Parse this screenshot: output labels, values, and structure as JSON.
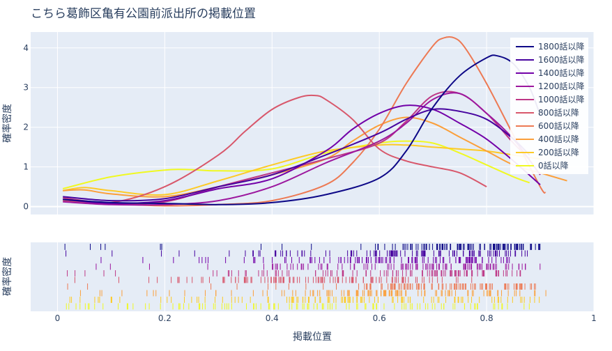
{
  "chart_data": {
    "type": "line",
    "title": "こちら葛飾区亀有公園前派出所の掲載位置",
    "xlabel": "掲載位置",
    "ylabel": "確率密度",
    "rug_ylabel": "確率密度",
    "xlim": [
      -0.05,
      1.0
    ],
    "ylim": [
      -0.2,
      4.4
    ],
    "x_ticks": [
      "0",
      "0.2",
      "0.4",
      "0.6",
      "0.8",
      "1"
    ],
    "x_tick_values": [
      0,
      0.2,
      0.4,
      0.6,
      0.8,
      1.0
    ],
    "y_ticks": [
      "0",
      "1",
      "2",
      "3",
      "4"
    ],
    "y_tick_values": [
      0,
      1,
      2,
      3,
      4
    ],
    "legend_position": "top-right",
    "grid": true,
    "series": [
      {
        "name": "1800話以降",
        "color": "#0d0887",
        "x": [
          0.01,
          0.1,
          0.2,
          0.3,
          0.4,
          0.5,
          0.6,
          0.65,
          0.7,
          0.75,
          0.8,
          0.82,
          0.85,
          0.88,
          0.9
        ],
        "y": [
          0.18,
          0.1,
          0.08,
          0.05,
          0.1,
          0.3,
          0.72,
          1.4,
          2.5,
          3.3,
          3.75,
          3.8,
          3.6,
          3.0,
          2.3
        ]
      },
      {
        "name": "1600話以降",
        "color": "#46039f",
        "x": [
          0.01,
          0.1,
          0.2,
          0.3,
          0.4,
          0.5,
          0.6,
          0.65,
          0.7,
          0.75,
          0.8,
          0.85,
          0.88
        ],
        "y": [
          0.25,
          0.15,
          0.2,
          0.5,
          0.8,
          1.3,
          1.85,
          2.2,
          2.45,
          2.4,
          2.2,
          1.7,
          1.3
        ]
      },
      {
        "name": "1400話以降",
        "color": "#7201a8",
        "x": [
          0.01,
          0.1,
          0.2,
          0.3,
          0.4,
          0.5,
          0.55,
          0.6,
          0.65,
          0.7,
          0.75,
          0.8,
          0.85,
          0.9
        ],
        "y": [
          0.18,
          0.08,
          0.15,
          0.45,
          0.7,
          1.4,
          1.95,
          2.35,
          2.55,
          2.45,
          2.1,
          1.7,
          1.15,
          0.55
        ]
      },
      {
        "name": "1200話以降",
        "color": "#9c179e",
        "x": [
          0.01,
          0.1,
          0.2,
          0.3,
          0.4,
          0.5,
          0.6,
          0.65,
          0.7,
          0.75,
          0.8,
          0.85,
          0.9
        ],
        "y": [
          0.12,
          0.05,
          0.05,
          0.15,
          0.5,
          1.1,
          1.65,
          2.1,
          2.7,
          2.85,
          2.35,
          1.7,
          0.8
        ]
      },
      {
        "name": "1000話以降",
        "color": "#bd3786",
        "x": [
          0.01,
          0.1,
          0.2,
          0.3,
          0.4,
          0.5,
          0.6,
          0.65,
          0.7,
          0.75,
          0.8,
          0.85,
          0.88
        ],
        "y": [
          0.22,
          0.08,
          0.12,
          0.5,
          0.85,
          1.2,
          1.6,
          2.15,
          2.8,
          2.85,
          2.35,
          1.6,
          1.2
        ]
      },
      {
        "name": "800話以降",
        "color": "#d8576b",
        "x": [
          0.01,
          0.1,
          0.2,
          0.3,
          0.35,
          0.4,
          0.45,
          0.48,
          0.5,
          0.55,
          0.6,
          0.65,
          0.7,
          0.75,
          0.8
        ],
        "y": [
          0.15,
          0.1,
          0.5,
          1.3,
          1.9,
          2.45,
          2.75,
          2.8,
          2.7,
          2.2,
          1.45,
          1.15,
          1.0,
          0.85,
          0.5
        ]
      },
      {
        "name": "600話以降",
        "color": "#ed7953",
        "x": [
          0.01,
          0.1,
          0.2,
          0.3,
          0.4,
          0.5,
          0.55,
          0.6,
          0.65,
          0.7,
          0.72,
          0.74,
          0.76,
          0.8,
          0.85,
          0.9,
          0.91
        ],
        "y": [
          0.18,
          0.08,
          0.02,
          0.05,
          0.15,
          0.55,
          1.1,
          1.95,
          3.1,
          4.05,
          4.25,
          4.25,
          4.0,
          3.1,
          1.8,
          0.5,
          0.35
        ]
      },
      {
        "name": "400話以降",
        "color": "#fb9f3a",
        "x": [
          0.01,
          0.05,
          0.1,
          0.2,
          0.3,
          0.4,
          0.5,
          0.55,
          0.6,
          0.65,
          0.7,
          0.75,
          0.8,
          0.85,
          0.9,
          0.95
        ],
        "y": [
          0.4,
          0.42,
          0.32,
          0.25,
          0.5,
          0.8,
          1.2,
          1.65,
          2.05,
          2.25,
          2.1,
          1.75,
          1.4,
          1.05,
          0.85,
          0.65
        ]
      },
      {
        "name": "200話以降",
        "color": "#fdca26",
        "x": [
          0.01,
          0.05,
          0.1,
          0.2,
          0.3,
          0.4,
          0.5,
          0.6,
          0.65,
          0.7,
          0.75,
          0.8,
          0.85,
          0.9
        ],
        "y": [
          0.4,
          0.48,
          0.4,
          0.3,
          0.65,
          1.05,
          1.4,
          1.55,
          1.55,
          1.5,
          1.45,
          1.4,
          1.3,
          1.2
        ]
      },
      {
        "name": "0話以降",
        "color": "#f0f921",
        "x": [
          0.01,
          0.1,
          0.2,
          0.25,
          0.3,
          0.4,
          0.5,
          0.6,
          0.65,
          0.7,
          0.75,
          0.8,
          0.85,
          0.88
        ],
        "y": [
          0.45,
          0.75,
          0.92,
          0.93,
          0.9,
          0.95,
          1.35,
          1.6,
          1.65,
          1.6,
          1.35,
          1.05,
          0.75,
          0.6
        ]
      }
    ]
  }
}
